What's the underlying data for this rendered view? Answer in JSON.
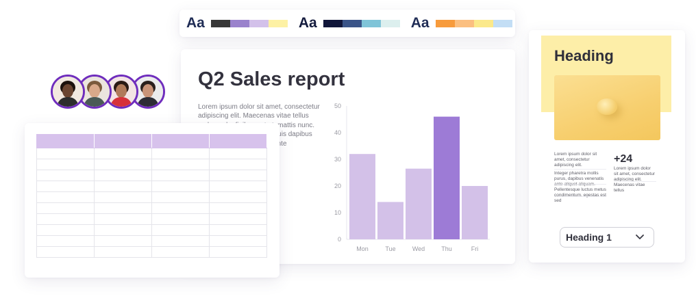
{
  "palettes": [
    {
      "label": "Aa",
      "label_color": "#1f2c55",
      "swatches": [
        "#373737",
        "#9a82cc",
        "#d3c1ea",
        "#fdf1a4"
      ]
    },
    {
      "label": "Aa",
      "label_color": "#141b3d",
      "swatches": [
        "#11163a",
        "#3a5488",
        "#7fc4d8",
        "#dcefee"
      ]
    },
    {
      "label": "Aa",
      "label_color": "#1f2c55",
      "swatches": [
        "#f79b3c",
        "#fbbf80",
        "#fbe98b",
        "#c3def5"
      ]
    }
  ],
  "report": {
    "title": "Q2 Sales report",
    "body": "Lorem ipsum dolor sit amet, consectetur adipiscing elit. Maecenas vitae tellus malesuada, finibus est at, mattis nunc. Curabitur non mollis est, quis dapibus quam. Mauris ut dolor id ante condimentum, volutpat ..."
  },
  "chart_data": {
    "type": "bar",
    "title": "",
    "xlabel": "",
    "ylabel": "",
    "categories": [
      "Mon",
      "Tue",
      "Wed",
      "Thu",
      "Fri"
    ],
    "values": [
      32,
      14,
      26.5,
      46,
      20
    ],
    "highlight": "Thu",
    "ylim": [
      0,
      50
    ],
    "yticks": [
      0,
      10,
      20,
      30,
      40,
      50
    ],
    "colors": {
      "bar": "#d3c1e8",
      "highlight": "#9d7bd6"
    },
    "grid": false,
    "legend": "none"
  },
  "avatars": [
    {
      "name": "avatar-woman-curly-hair",
      "bg": "#f2e9df",
      "skin": "#6b4530",
      "hair": "#1d120c",
      "shirt": "#2d2d2d"
    },
    {
      "name": "avatar-man-glasses",
      "bg": "#ebe5de",
      "skin": "#d9a98a",
      "hair": "#7a5a3c",
      "shirt": "#4a5a56"
    },
    {
      "name": "avatar-woman-long-hair",
      "bg": "#f3e4e4",
      "skin": "#b07a5a",
      "hair": "#2a1a14",
      "shirt": "#d6313a"
    },
    {
      "name": "avatar-man-beard",
      "bg": "#ececec",
      "skin": "#c99478",
      "hair": "#2a201c",
      "shirt": "#2d2d35"
    }
  ],
  "table": {
    "columns": 4,
    "rows": 11,
    "header_color": "#d7c2ec"
  },
  "heading_card": {
    "title": "Heading",
    "text_1": "Lorem ipsum dolor sit amet, consectetur adipiscing elit.",
    "text_2": "Integer pharetra mollis purus, dapibus venenatis ante aliquet aliquam. Pellentesque luctus metus condimentum, egestas est sed",
    "stat_value": "+24",
    "stat_text": "Lorem ipsum dolor sit amet, consectetur adipiscing elit. Maecenas vitae tellus"
  },
  "dropdown": {
    "selected": "Heading 1"
  }
}
